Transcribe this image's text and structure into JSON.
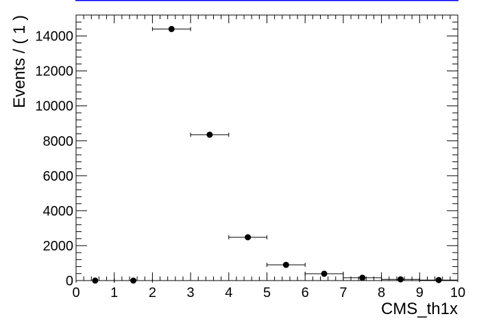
{
  "chart_data": {
    "type": "scatter",
    "xlabel": "CMS_th1x",
    "ylabel": "Events / ( 1 )",
    "xlim": [
      0,
      10
    ],
    "ylim": [
      0,
      15200
    ],
    "x_ticks": [
      "0",
      "1",
      "2",
      "3",
      "4",
      "5",
      "6",
      "7",
      "8",
      "9",
      "10"
    ],
    "y_ticks": [
      "0",
      "2000",
      "4000",
      "6000",
      "8000",
      "10000",
      "12000",
      "14000"
    ],
    "grid": false,
    "series": [
      {
        "x": [
          0.5,
          1.5,
          2.5,
          3.5,
          4.5,
          5.5,
          6.5,
          7.5,
          8.5,
          9.5
        ],
        "x_err": [
          0.5,
          0.5,
          0.5,
          0.5,
          0.5,
          0.5,
          0.5,
          0.5,
          0.5,
          0.5
        ],
        "values": [
          0,
          0,
          14400,
          8350,
          2480,
          900,
          390,
          160,
          70,
          30
        ]
      }
    ],
    "colors": {
      "marker": "#000000",
      "axis": "#000000",
      "top_band": "#0000ff"
    }
  }
}
